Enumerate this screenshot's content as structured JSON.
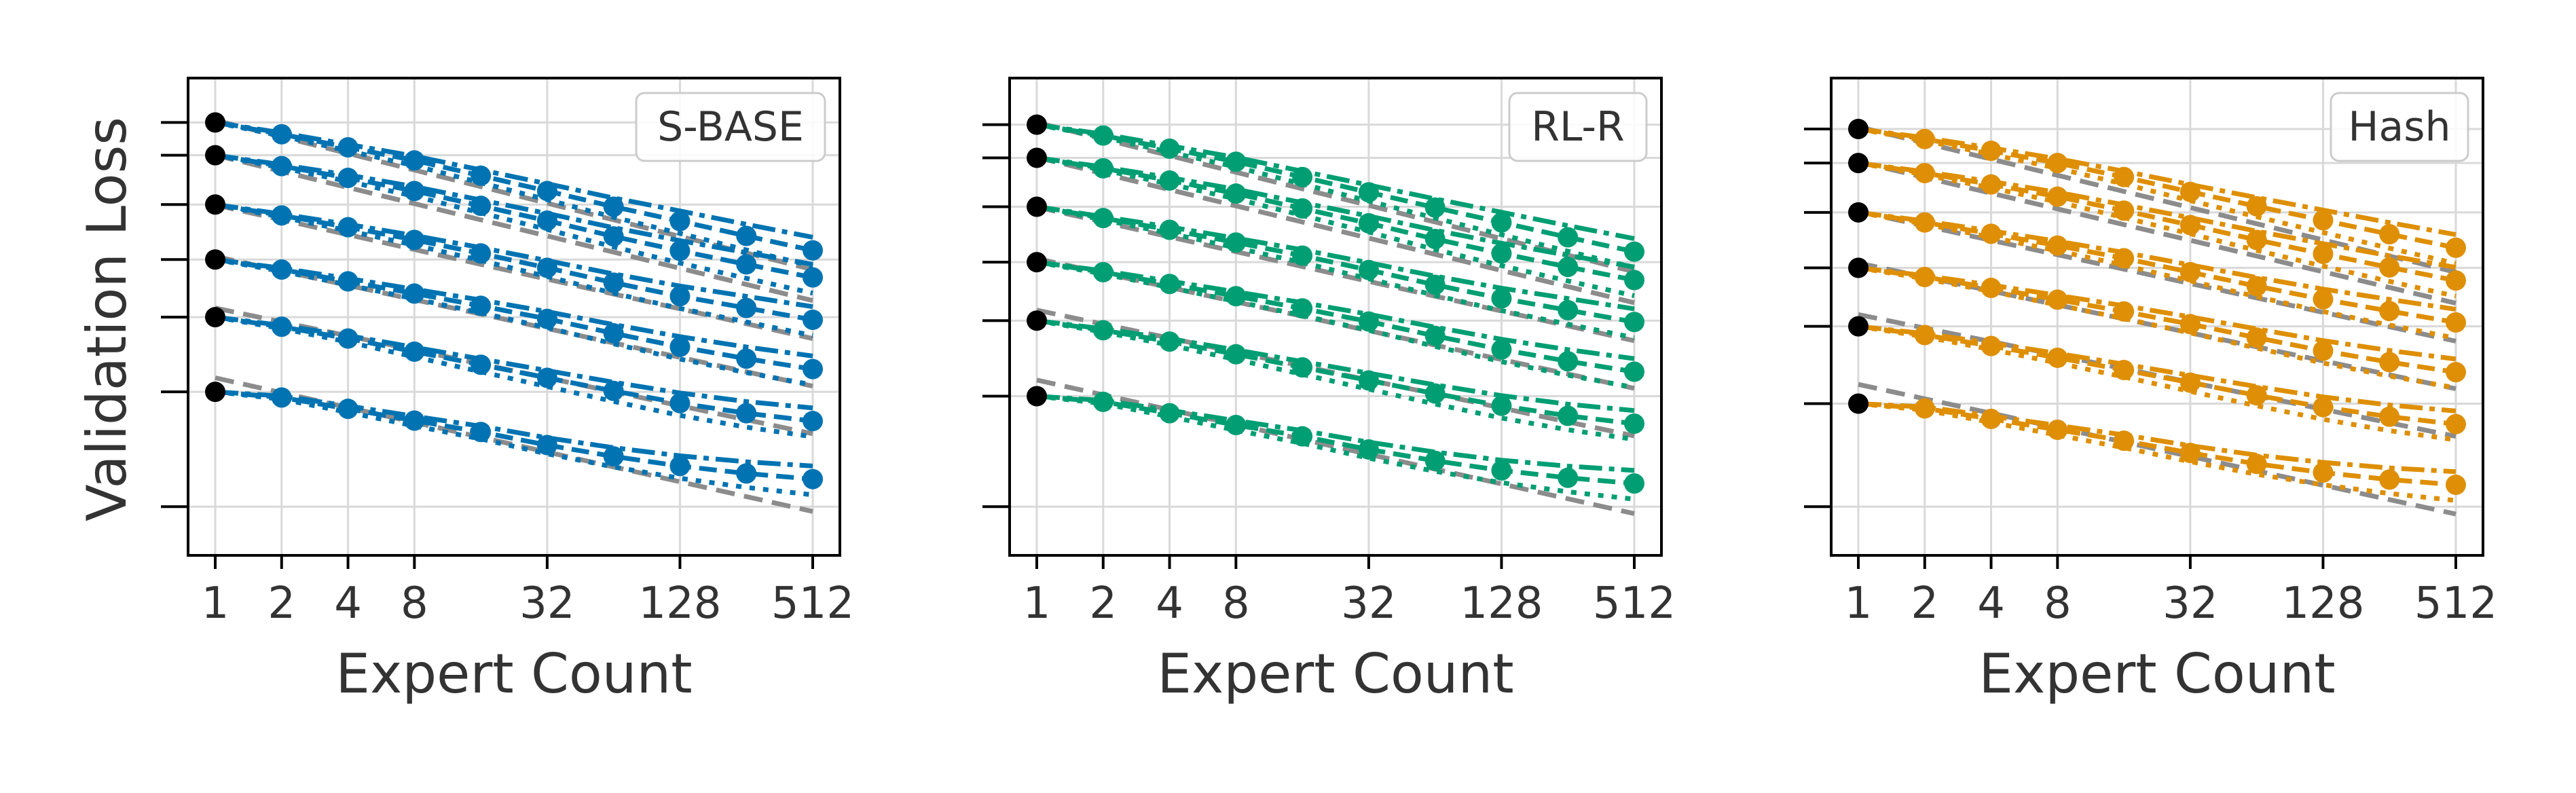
{
  "figure": {
    "ylabel": "Validation Loss"
  },
  "colors": {
    "baseline_point": "#000000",
    "fit_line": "#8c8c8c",
    "grid": "#d9d9d9",
    "frame": "#000000"
  },
  "chart_data": [
    {
      "type": "line",
      "legend": "S-BASE",
      "legend_placement": "top-right",
      "color": "#0173b2",
      "xlabel": "Expert Count",
      "x_scale": "log2",
      "x_ticks": [
        "1",
        "2",
        "4",
        "8",
        "32",
        "128",
        "512"
      ],
      "x": [
        1,
        2,
        4,
        8,
        16,
        32,
        64,
        128,
        256,
        512
      ],
      "grid": true,
      "ylim": [
        0.0,
        1.0
      ],
      "series": [
        {
          "points": [
            0.945,
            0.918,
            0.888,
            0.858,
            0.823,
            0.788,
            0.752,
            0.719,
            0.685,
            0.652
          ],
          "fit": [
            0.95,
            0.912,
            0.874,
            0.836,
            0.798,
            0.76,
            0.722,
            0.684,
            0.646,
            0.608
          ]
        },
        {
          "points": [
            0.87,
            0.845,
            0.818,
            0.788,
            0.754,
            0.72,
            0.684,
            0.651,
            0.62,
            0.59
          ],
          "fit": [
            0.87,
            0.833,
            0.796,
            0.759,
            0.722,
            0.685,
            0.648,
            0.611,
            0.574,
            0.537
          ]
        },
        {
          "points": [
            0.757,
            0.732,
            0.705,
            0.676,
            0.645,
            0.612,
            0.578,
            0.547,
            0.52,
            0.493
          ],
          "fit": [
            0.756,
            0.722,
            0.688,
            0.654,
            0.62,
            0.586,
            0.552,
            0.518,
            0.484,
            0.45
          ]
        },
        {
          "points": [
            0.631,
            0.608,
            0.581,
            0.553,
            0.525,
            0.495,
            0.462,
            0.431,
            0.404,
            0.38
          ],
          "fit": [
            0.638,
            0.605,
            0.572,
            0.539,
            0.506,
            0.473,
            0.44,
            0.407,
            0.374,
            0.341
          ]
        },
        {
          "points": [
            0.499,
            0.477,
            0.45,
            0.42,
            0.39,
            0.36,
            0.33,
            0.302,
            0.279,
            0.261
          ],
          "fit": [
            0.52,
            0.488,
            0.456,
            0.424,
            0.392,
            0.36,
            0.328,
            0.296,
            0.264,
            0.232
          ]
        },
        {
          "points": [
            0.328,
            0.315,
            0.289,
            0.262,
            0.236,
            0.206,
            0.18,
            0.158,
            0.141,
            0.128
          ],
          "fit": [
            0.36,
            0.326,
            0.292,
            0.258,
            0.224,
            0.19,
            0.156,
            0.122,
            0.088,
            0.054
          ]
        }
      ]
    },
    {
      "type": "line",
      "legend": "RL-R",
      "legend_placement": "top-right",
      "color": "#029e73",
      "xlabel": "Expert Count",
      "x_scale": "log2",
      "x_ticks": [
        "1",
        "2",
        "4",
        "8",
        "32",
        "128",
        "512"
      ],
      "x": [
        1,
        2,
        4,
        8,
        16,
        32,
        64,
        128,
        256,
        512
      ],
      "grid": true,
      "ylim": [
        0.0,
        1.0
      ],
      "series": [
        {
          "points": [
            0.94,
            0.915,
            0.885,
            0.855,
            0.82,
            0.785,
            0.75,
            0.716,
            0.682,
            0.649
          ],
          "fit": [
            0.945,
            0.907,
            0.869,
            0.831,
            0.793,
            0.755,
            0.717,
            0.679,
            0.641,
            0.603
          ]
        },
        {
          "points": [
            0.864,
            0.84,
            0.812,
            0.782,
            0.748,
            0.714,
            0.678,
            0.645,
            0.614,
            0.584
          ],
          "fit": [
            0.865,
            0.828,
            0.791,
            0.754,
            0.717,
            0.68,
            0.643,
            0.606,
            0.569,
            0.532
          ]
        },
        {
          "points": [
            0.752,
            0.726,
            0.699,
            0.67,
            0.64,
            0.607,
            0.573,
            0.542,
            0.515,
            0.488
          ],
          "fit": [
            0.751,
            0.717,
            0.683,
            0.649,
            0.615,
            0.581,
            0.547,
            0.513,
            0.479,
            0.445
          ]
        },
        {
          "points": [
            0.625,
            0.602,
            0.575,
            0.547,
            0.519,
            0.489,
            0.456,
            0.425,
            0.398,
            0.374
          ],
          "fit": [
            0.633,
            0.6,
            0.567,
            0.534,
            0.501,
            0.468,
            0.435,
            0.402,
            0.369,
            0.336
          ]
        },
        {
          "points": [
            0.491,
            0.469,
            0.443,
            0.414,
            0.384,
            0.354,
            0.324,
            0.296,
            0.273,
            0.255
          ],
          "fit": [
            0.515,
            0.483,
            0.451,
            0.419,
            0.387,
            0.355,
            0.323,
            0.291,
            0.259,
            0.227
          ]
        },
        {
          "points": [
            0.318,
            0.305,
            0.279,
            0.252,
            0.226,
            0.196,
            0.17,
            0.148,
            0.131,
            0.118
          ],
          "fit": [
            0.355,
            0.321,
            0.287,
            0.253,
            0.219,
            0.185,
            0.151,
            0.117,
            0.083,
            0.049
          ]
        }
      ]
    },
    {
      "type": "line",
      "legend": "Hash",
      "legend_placement": "top-right",
      "color": "#de8f05",
      "xlabel": "Expert Count",
      "x_scale": "log2",
      "x_ticks": [
        "1",
        "2",
        "4",
        "8",
        "32",
        "128",
        "512"
      ],
      "x": [
        1,
        2,
        4,
        8,
        16,
        32,
        64,
        128,
        256,
        512
      ],
      "grid": true,
      "ylim": [
        0.0,
        1.0
      ],
      "series": [
        {
          "points": [
            0.93,
            0.907,
            0.88,
            0.852,
            0.82,
            0.786,
            0.753,
            0.721,
            0.689,
            0.658
          ],
          "fit": [
            0.935,
            0.898,
            0.861,
            0.824,
            0.787,
            0.75,
            0.713,
            0.676,
            0.639,
            0.602
          ]
        },
        {
          "points": [
            0.852,
            0.829,
            0.803,
            0.775,
            0.743,
            0.71,
            0.676,
            0.644,
            0.613,
            0.583
          ],
          "fit": [
            0.855,
            0.819,
            0.783,
            0.747,
            0.711,
            0.675,
            0.639,
            0.603,
            0.567,
            0.531
          ]
        },
        {
          "points": [
            0.739,
            0.716,
            0.69,
            0.663,
            0.634,
            0.602,
            0.57,
            0.54,
            0.513,
            0.487
          ],
          "fit": [
            0.741,
            0.708,
            0.675,
            0.642,
            0.609,
            0.576,
            0.543,
            0.51,
            0.477,
            0.444
          ]
        },
        {
          "points": [
            0.612,
            0.591,
            0.566,
            0.539,
            0.512,
            0.483,
            0.452,
            0.422,
            0.396,
            0.373
          ],
          "fit": [
            0.623,
            0.591,
            0.559,
            0.527,
            0.495,
            0.463,
            0.431,
            0.399,
            0.367,
            0.335
          ]
        },
        {
          "points": [
            0.478,
            0.458,
            0.433,
            0.406,
            0.378,
            0.349,
            0.32,
            0.293,
            0.271,
            0.254
          ],
          "fit": [
            0.505,
            0.474,
            0.443,
            0.412,
            0.381,
            0.35,
            0.319,
            0.288,
            0.257,
            0.226
          ]
        },
        {
          "points": [
            0.301,
            0.29,
            0.266,
            0.241,
            0.216,
            0.188,
            0.163,
            0.143,
            0.127,
            0.115
          ],
          "fit": [
            0.345,
            0.312,
            0.279,
            0.246,
            0.213,
            0.18,
            0.147,
            0.114,
            0.081,
            0.048
          ]
        }
      ]
    }
  ]
}
